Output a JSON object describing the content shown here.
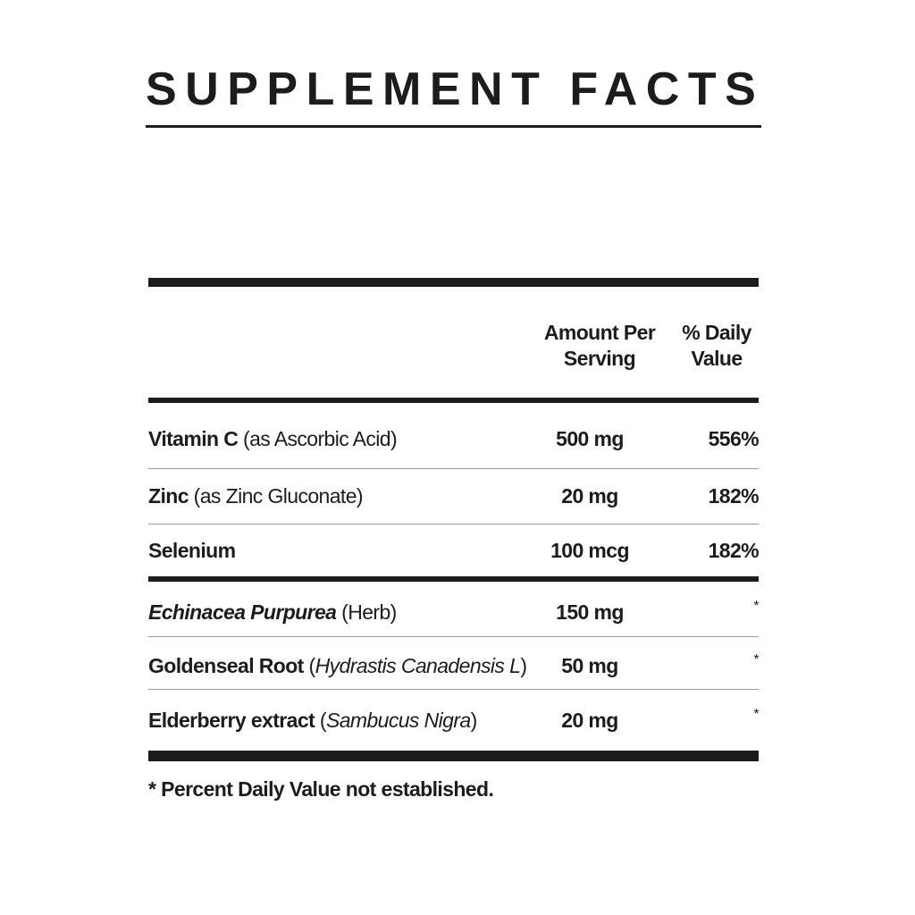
{
  "title": "SUPPLEMENT FACTS",
  "header": {
    "amount_line1": "Amount Per",
    "amount_line2": "Serving",
    "dv_line1": "% Daily",
    "dv_line2": "Value"
  },
  "rows": [
    {
      "name": [
        {
          "text": "Vitamin C",
          "style": "b"
        },
        {
          "text": " (as Ascorbic Acid)",
          "style": "n"
        }
      ],
      "amount": "500 mg",
      "dv": "556%"
    },
    {
      "name": [
        {
          "text": "Zinc",
          "style": "b"
        },
        {
          "text": " (as Zinc Gluconate)",
          "style": "n"
        }
      ],
      "amount": "20 mg",
      "dv": "182%"
    },
    {
      "name": [
        {
          "text": "Selenium",
          "style": "b"
        }
      ],
      "amount": "100 mcg",
      "dv": "182%"
    },
    {
      "name": [
        {
          "text": "Echinacea Purpurea",
          "style": "b i"
        },
        {
          "text": " (Herb)",
          "style": "n"
        }
      ],
      "amount": "150 mg",
      "dv": "*"
    },
    {
      "name": [
        {
          "text": "Goldenseal Root",
          "style": "b"
        },
        {
          "text": " (",
          "style": "n"
        },
        {
          "text": "Hydrastis Canadensis L",
          "style": "n i"
        },
        {
          "text": ")",
          "style": "n"
        }
      ],
      "amount": "50 mg",
      "dv": "*"
    },
    {
      "name": [
        {
          "text": "Elderberry extract",
          "style": "b"
        },
        {
          "text": " (",
          "style": "n"
        },
        {
          "text": "Sambucus Nigra",
          "style": "n i"
        },
        {
          "text": ")",
          "style": "n"
        }
      ],
      "amount": "20 mg",
      "dv": "*"
    }
  ],
  "footnote": "* Percent Daily Value not established."
}
